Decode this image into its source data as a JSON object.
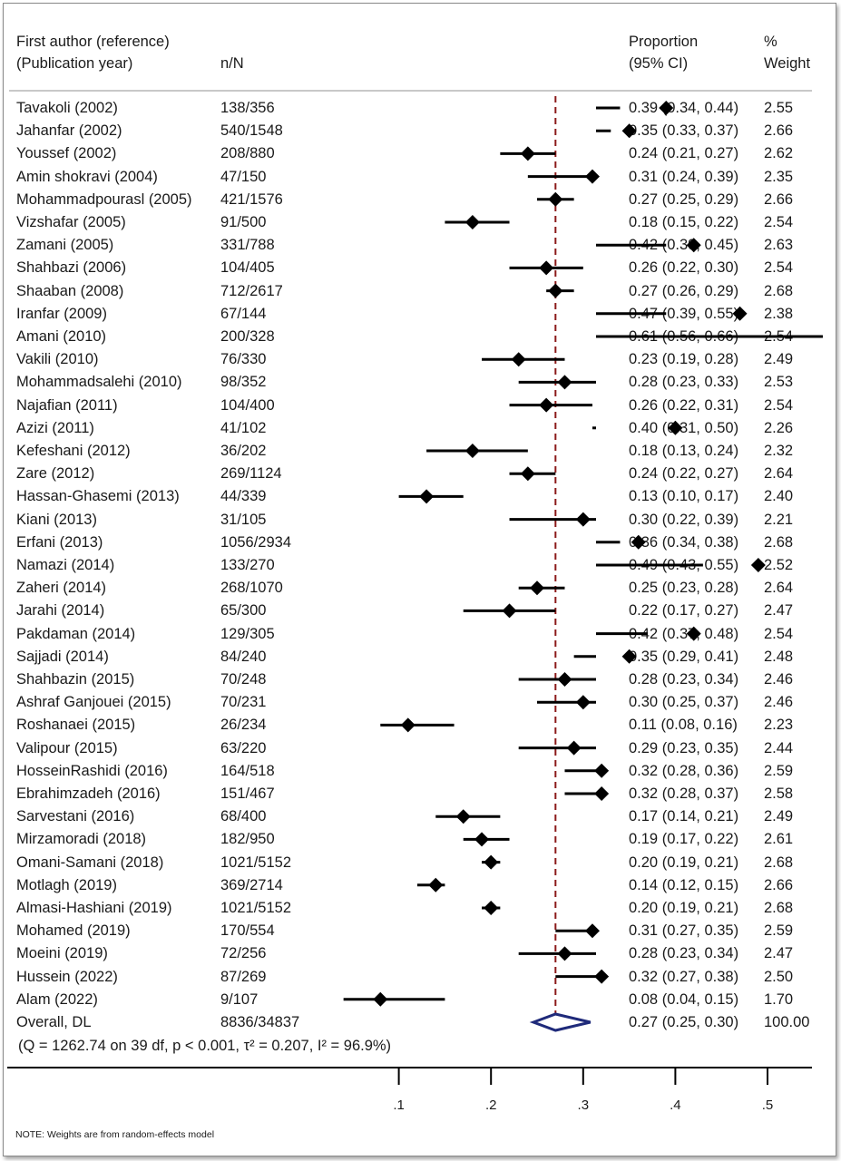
{
  "header": {
    "author_line1": "First author (reference)",
    "author_line2": "(Publication year)",
    "nN": "n/N",
    "prop_line1": "Proportion",
    "prop_line2": "(95% CI)",
    "weight_line1": "%",
    "weight_line2": "Weight"
  },
  "note": "NOTE: Weights are from random-effects model",
  "chart_data": {
    "type": "forest",
    "x_ticks": [
      0.1,
      0.2,
      0.3,
      0.4,
      0.5
    ],
    "x_tick_labels": [
      ".1",
      ".2",
      ".3",
      ".4",
      ".5"
    ],
    "reference_line": 0.27,
    "overall": {
      "label": "Overall, DL",
      "nN": "8836/34837",
      "est": 0.27,
      "lo": 0.25,
      "hi": 0.3,
      "ci_text": "0.27 (0.25, 0.30)",
      "weight": "100.00",
      "heterogeneity": "(Q = 1262.74 on 39 df, p < 0.001, τ² = 0.207, I² = 96.9%)"
    },
    "studies": [
      {
        "author": "Tavakoli (2002)",
        "nN": "138/356",
        "est": 0.39,
        "lo": 0.34,
        "hi": 0.44,
        "ci_text": "0.39 (0.34, 0.44)",
        "weight": "2.55"
      },
      {
        "author": "Jahanfar (2002)",
        "nN": "540/1548",
        "est": 0.35,
        "lo": 0.33,
        "hi": 0.37,
        "ci_text": "0.35 (0.33, 0.37)",
        "weight": "2.66"
      },
      {
        "author": "Youssef (2002)",
        "nN": "208/880",
        "est": 0.24,
        "lo": 0.21,
        "hi": 0.27,
        "ci_text": "0.24 (0.21, 0.27)",
        "weight": "2.62"
      },
      {
        "author": "Amin shokravi (2004)",
        "nN": "47/150",
        "est": 0.31,
        "lo": 0.24,
        "hi": 0.39,
        "ci_text": "0.31 (0.24, 0.39)",
        "weight": "2.35"
      },
      {
        "author": "Mohammadpourasl (2005)",
        "nN": "421/1576",
        "est": 0.27,
        "lo": 0.25,
        "hi": 0.29,
        "ci_text": "0.27 (0.25, 0.29)",
        "weight": "2.66"
      },
      {
        "author": "Vizshafar (2005)",
        "nN": "91/500",
        "est": 0.18,
        "lo": 0.15,
        "hi": 0.22,
        "ci_text": "0.18 (0.15, 0.22)",
        "weight": "2.54"
      },
      {
        "author": "Zamani (2005)",
        "nN": "331/788",
        "est": 0.42,
        "lo": 0.39,
        "hi": 0.45,
        "ci_text": "0.42 (0.39, 0.45)",
        "weight": "2.63"
      },
      {
        "author": "Shahbazi (2006)",
        "nN": "104/405",
        "est": 0.26,
        "lo": 0.22,
        "hi": 0.3,
        "ci_text": "0.26 (0.22, 0.30)",
        "weight": "2.54"
      },
      {
        "author": "Shaaban (2008)",
        "nN": "712/2617",
        "est": 0.27,
        "lo": 0.26,
        "hi": 0.29,
        "ci_text": "0.27 (0.26, 0.29)",
        "weight": "2.68"
      },
      {
        "author": "Iranfar (2009)",
        "nN": "67/144",
        "est": 0.47,
        "lo": 0.39,
        "hi": 0.55,
        "ci_text": "0.47 (0.39, 0.55)",
        "weight": "2.38"
      },
      {
        "author": "Amani (2010)",
        "nN": "200/328",
        "est": 0.61,
        "lo": 0.56,
        "hi": 0.66,
        "ci_text": "0.61 (0.56, 0.66)",
        "weight": "2.54"
      },
      {
        "author": "Vakili (2010)",
        "nN": "76/330",
        "est": 0.23,
        "lo": 0.19,
        "hi": 0.28,
        "ci_text": "0.23 (0.19, 0.28)",
        "weight": "2.49"
      },
      {
        "author": "Mohammadsalehi (2010)",
        "nN": "98/352",
        "est": 0.28,
        "lo": 0.23,
        "hi": 0.33,
        "ci_text": "0.28 (0.23, 0.33)",
        "weight": "2.53"
      },
      {
        "author": "Najafian (2011)",
        "nN": "104/400",
        "est": 0.26,
        "lo": 0.22,
        "hi": 0.31,
        "ci_text": "0.26 (0.22, 0.31)",
        "weight": "2.54"
      },
      {
        "author": "Azizi (2011)",
        "nN": "41/102",
        "est": 0.4,
        "lo": 0.31,
        "hi": 0.5,
        "ci_text": "0.40 (0.31, 0.50)",
        "weight": "2.26"
      },
      {
        "author": "Kefeshani (2012)",
        "nN": "36/202",
        "est": 0.18,
        "lo": 0.13,
        "hi": 0.24,
        "ci_text": "0.18 (0.13, 0.24)",
        "weight": "2.32"
      },
      {
        "author": "Zare (2012)",
        "nN": "269/1124",
        "est": 0.24,
        "lo": 0.22,
        "hi": 0.27,
        "ci_text": "0.24 (0.22, 0.27)",
        "weight": "2.64"
      },
      {
        "author": "Hassan-Ghasemi (2013)",
        "nN": "44/339",
        "est": 0.13,
        "lo": 0.1,
        "hi": 0.17,
        "ci_text": "0.13 (0.10, 0.17)",
        "weight": "2.40"
      },
      {
        "author": "Kiani (2013)",
        "nN": "31/105",
        "est": 0.3,
        "lo": 0.22,
        "hi": 0.39,
        "ci_text": "0.30 (0.22, 0.39)",
        "weight": "2.21"
      },
      {
        "author": "Erfani (2013)",
        "nN": "1056/2934",
        "est": 0.36,
        "lo": 0.34,
        "hi": 0.38,
        "ci_text": "0.36 (0.34, 0.38)",
        "weight": "2.68"
      },
      {
        "author": "Namazi (2014)",
        "nN": "133/270",
        "est": 0.49,
        "lo": 0.43,
        "hi": 0.55,
        "ci_text": "0.49 (0.43, 0.55)",
        "weight": "2.52"
      },
      {
        "author": "Zaheri (2014)",
        "nN": "268/1070",
        "est": 0.25,
        "lo": 0.23,
        "hi": 0.28,
        "ci_text": "0.25 (0.23, 0.28)",
        "weight": "2.64"
      },
      {
        "author": "Jarahi (2014)",
        "nN": "65/300",
        "est": 0.22,
        "lo": 0.17,
        "hi": 0.27,
        "ci_text": "0.22 (0.17, 0.27)",
        "weight": "2.47"
      },
      {
        "author": "Pakdaman (2014)",
        "nN": "129/305",
        "est": 0.42,
        "lo": 0.37,
        "hi": 0.48,
        "ci_text": "0.42 (0.37, 0.48)",
        "weight": "2.54"
      },
      {
        "author": "Sajjadi (2014)",
        "nN": "84/240",
        "est": 0.35,
        "lo": 0.29,
        "hi": 0.41,
        "ci_text": "0.35 (0.29, 0.41)",
        "weight": "2.48"
      },
      {
        "author": "Shahbazin (2015)",
        "nN": "70/248",
        "est": 0.28,
        "lo": 0.23,
        "hi": 0.34,
        "ci_text": "0.28 (0.23, 0.34)",
        "weight": "2.46"
      },
      {
        "author": "Ashraf Ganjouei (2015)",
        "nN": "70/231",
        "est": 0.3,
        "lo": 0.25,
        "hi": 0.37,
        "ci_text": "0.30 (0.25, 0.37)",
        "weight": "2.46"
      },
      {
        "author": "Roshanaei (2015)",
        "nN": "26/234",
        "est": 0.11,
        "lo": 0.08,
        "hi": 0.16,
        "ci_text": "0.11 (0.08, 0.16)",
        "weight": "2.23"
      },
      {
        "author": "Valipour (2015)",
        "nN": "63/220",
        "est": 0.29,
        "lo": 0.23,
        "hi": 0.35,
        "ci_text": "0.29 (0.23, 0.35)",
        "weight": "2.44"
      },
      {
        "author": "HosseinRashidi (2016)",
        "nN": "164/518",
        "est": 0.32,
        "lo": 0.28,
        "hi": 0.36,
        "ci_text": "0.32 (0.28, 0.36)",
        "weight": "2.59"
      },
      {
        "author": "Ebrahimzadeh (2016)",
        "nN": "151/467",
        "est": 0.32,
        "lo": 0.28,
        "hi": 0.37,
        "ci_text": "0.32 (0.28, 0.37)",
        "weight": "2.58"
      },
      {
        "author": "Sarvestani (2016)",
        "nN": "68/400",
        "est": 0.17,
        "lo": 0.14,
        "hi": 0.21,
        "ci_text": "0.17 (0.14, 0.21)",
        "weight": "2.49"
      },
      {
        "author": "Mirzamoradi (2018)",
        "nN": "182/950",
        "est": 0.19,
        "lo": 0.17,
        "hi": 0.22,
        "ci_text": "0.19 (0.17, 0.22)",
        "weight": "2.61"
      },
      {
        "author": "Omani-Samani (2018)",
        "nN": "1021/5152",
        "est": 0.2,
        "lo": 0.19,
        "hi": 0.21,
        "ci_text": "0.20 (0.19, 0.21)",
        "weight": "2.68"
      },
      {
        "author": "Motlagh (2019)",
        "nN": "369/2714",
        "est": 0.14,
        "lo": 0.12,
        "hi": 0.15,
        "ci_text": "0.14 (0.12, 0.15)",
        "weight": "2.66"
      },
      {
        "author": "Almasi-Hashiani (2019)",
        "nN": "1021/5152",
        "est": 0.2,
        "lo": 0.19,
        "hi": 0.21,
        "ci_text": "0.20 (0.19, 0.21)",
        "weight": "2.68"
      },
      {
        "author": "Mohamed (2019)",
        "nN": "170/554",
        "est": 0.31,
        "lo": 0.27,
        "hi": 0.35,
        "ci_text": "0.31 (0.27, 0.35)",
        "weight": "2.59"
      },
      {
        "author": "Moeini (2019)",
        "nN": "72/256",
        "est": 0.28,
        "lo": 0.23,
        "hi": 0.34,
        "ci_text": "0.28 (0.23, 0.34)",
        "weight": "2.47"
      },
      {
        "author": "Hussein (2022)",
        "nN": "87/269",
        "est": 0.32,
        "lo": 0.27,
        "hi": 0.38,
        "ci_text": "0.32 (0.27, 0.38)",
        "weight": "2.50"
      },
      {
        "author": "Alam (2022)",
        "nN": "9/107",
        "est": 0.08,
        "lo": 0.04,
        "hi": 0.15,
        "ci_text": "0.08 (0.04, 0.15)",
        "weight": "1.70"
      }
    ],
    "colors": {
      "marker": "#000000",
      "reference_line": "#8b1a1a",
      "overall_diamond": "#1f2a7a",
      "axis": "#000000"
    }
  }
}
